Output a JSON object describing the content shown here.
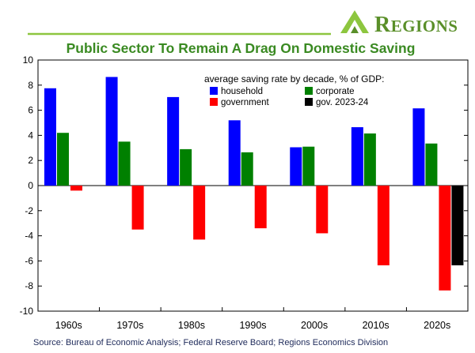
{
  "brand": {
    "name": "Regions",
    "green": "#5a8f29",
    "light_green": "#8dc63f"
  },
  "source": "Source: Bureau of Economic Analysis; Federal Reserve Board; Regions Economics Division",
  "chart_data": {
    "type": "bar",
    "title": "Public Sector To Remain A Drag On Domestic Saving",
    "legend_title": "average saving rate by decade, % of GDP:",
    "legend_placement": "top-right",
    "categories": [
      "1960s",
      "1970s",
      "1980s",
      "1990s",
      "2000s",
      "2010s",
      "2020s"
    ],
    "series": [
      {
        "name": "household",
        "color": "#0000ff",
        "values": [
          7.75,
          8.65,
          7.05,
          5.2,
          3.05,
          4.65,
          6.15
        ]
      },
      {
        "name": "corporate",
        "color": "#008000",
        "values": [
          4.2,
          3.5,
          2.9,
          2.65,
          3.1,
          4.15,
          3.35
        ]
      },
      {
        "name": "government",
        "color": "#ff0000",
        "values": [
          -0.4,
          -3.5,
          -4.3,
          -3.4,
          -3.8,
          -6.35,
          -8.35
        ]
      },
      {
        "name": "gov. 2023-24",
        "color": "#000000",
        "values": [
          null,
          null,
          null,
          null,
          null,
          null,
          -6.35
        ]
      }
    ],
    "ylim": [
      -10,
      10
    ],
    "yticks": [
      -10,
      -8,
      -6,
      -4,
      -2,
      0,
      2,
      4,
      6,
      8,
      10
    ],
    "xlabel": "",
    "ylabel": "",
    "grid": false
  }
}
